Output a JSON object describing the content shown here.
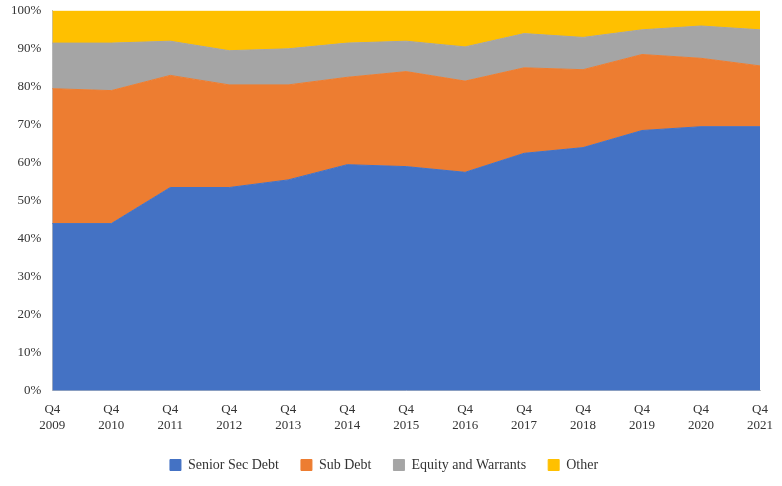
{
  "chart_data": {
    "type": "area",
    "categories": [
      "Q4 2009",
      "Q4 2010",
      "Q4 2011",
      "Q4 2012",
      "Q4 2013",
      "Q4 2014",
      "Q4 2015",
      "Q4 2016",
      "Q4 2017",
      "Q4 2018",
      "Q4 2019",
      "Q4 2020",
      "Q4 2021"
    ],
    "series": [
      {
        "name": "Senior Sec Debt",
        "color": "#4472c4",
        "values": [
          44,
          44,
          53.5,
          53.5,
          55.5,
          59.5,
          59,
          57.5,
          62.5,
          64,
          68.5,
          69.5,
          69.5
        ]
      },
      {
        "name": "Sub Debt",
        "color": "#ed7d31",
        "values": [
          35.5,
          35,
          29.5,
          27,
          25,
          23,
          25,
          24,
          22.5,
          20.5,
          20,
          18,
          16
        ]
      },
      {
        "name": "Equity and Warrants",
        "color": "#a5a5a5",
        "values": [
          12,
          12.5,
          9,
          9,
          9.5,
          9,
          8,
          9,
          9,
          8.5,
          6.5,
          8.5,
          9.5
        ]
      },
      {
        "name": "Other",
        "color": "#ffc000",
        "values": [
          8.5,
          8.5,
          8,
          10.5,
          10,
          8.5,
          8,
          9.5,
          6,
          7,
          5,
          4,
          5
        ]
      }
    ],
    "ylim": [
      0,
      100
    ],
    "yticks": [
      {
        "value": 0,
        "label": "0%"
      },
      {
        "value": 10,
        "label": "10%"
      },
      {
        "value": 20,
        "label": "20%"
      },
      {
        "value": 30,
        "label": "30%"
      },
      {
        "value": 40,
        "label": "40%"
      },
      {
        "value": 50,
        "label": "50%"
      },
      {
        "value": 60,
        "label": "60%"
      },
      {
        "value": 70,
        "label": "70%"
      },
      {
        "value": 80,
        "label": "80%"
      },
      {
        "value": 90,
        "label": "90%"
      },
      {
        "value": 100,
        "label": "100%"
      }
    ],
    "stacked": true,
    "grid": false,
    "legend": "bottom"
  }
}
